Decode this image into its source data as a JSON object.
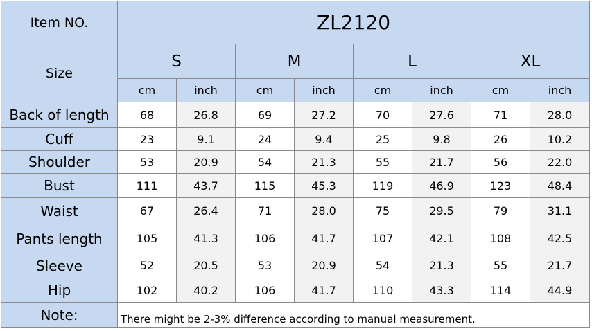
{
  "header": {
    "item_label": "Item NO.",
    "item_no": "ZL2120",
    "size_label": "Size"
  },
  "sizes": [
    {
      "name": "S",
      "units": [
        "cm",
        "inch"
      ]
    },
    {
      "name": "M",
      "units": [
        "cm",
        "inch"
      ]
    },
    {
      "name": "L",
      "units": [
        "cm",
        "inch"
      ]
    },
    {
      "name": "XL",
      "units": [
        "cm",
        "inch"
      ]
    }
  ],
  "rows": [
    {
      "label": "Back of length",
      "values": [
        "68",
        "26.8",
        "69",
        "27.2",
        "70",
        "27.6",
        "71",
        "28.0"
      ]
    },
    {
      "label": "Cuff",
      "values": [
        "23",
        "9.1",
        "24",
        "9.4",
        "25",
        "9.8",
        "26",
        "10.2"
      ]
    },
    {
      "label": "Shoulder",
      "values": [
        "53",
        "20.9",
        "54",
        "21.3",
        "55",
        "21.7",
        "56",
        "22.0"
      ]
    },
    {
      "label": "Bust",
      "values": [
        "111",
        "43.7",
        "115",
        "45.3",
        "119",
        "46.9",
        "123",
        "48.4"
      ]
    },
    {
      "label": "Waist",
      "values": [
        "67",
        "26.4",
        "71",
        "28.0",
        "75",
        "29.5",
        "79",
        "31.1"
      ]
    },
    {
      "label": "Pants length",
      "values": [
        "105",
        "41.3",
        "106",
        "41.7",
        "107",
        "42.1",
        "108",
        "42.5"
      ]
    },
    {
      "label": "Sleeve",
      "values": [
        "52",
        "20.5",
        "53",
        "20.9",
        "54",
        "21.3",
        "55",
        "21.7"
      ]
    },
    {
      "label": "Hip",
      "values": [
        "102",
        "40.2",
        "106",
        "41.7",
        "110",
        "43.3",
        "114",
        "44.9"
      ]
    }
  ],
  "note": {
    "label": "Note:",
    "text": "There might be 2-3% difference according to manual measurement."
  }
}
